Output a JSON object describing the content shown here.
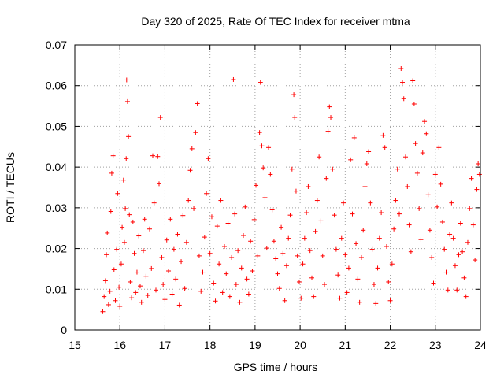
{
  "chart_data": {
    "type": "scatter",
    "title": "Day 320 of 2025, Rate Of TEC Index for receiver mtma",
    "xlabel": "GPS time / hours",
    "ylabel": "ROTI / TECUs",
    "xlim": [
      15,
      24
    ],
    "ylim": [
      0,
      0.07
    ],
    "xticks": [
      15,
      16,
      17,
      18,
      19,
      20,
      21,
      22,
      23,
      24
    ],
    "yticks": [
      0,
      0.01,
      0.02,
      0.03,
      0.04,
      0.05,
      0.06,
      0.07
    ],
    "xtick_labels": [
      "15",
      "16",
      "17",
      "18",
      "19",
      "20",
      "21",
      "22",
      "23",
      "24"
    ],
    "ytick_labels": [
      "0",
      "0.01",
      "0.02",
      "0.03",
      "0.04",
      "0.05",
      "0.06",
      "0.07"
    ],
    "grid": true,
    "marker": "+",
    "color": "#ff0000",
    "series": [
      {
        "name": "ROTI",
        "points": [
          [
            15.62,
            0.0045
          ],
          [
            15.65,
            0.0082
          ],
          [
            15.68,
            0.0121
          ],
          [
            15.7,
            0.0185
          ],
          [
            15.72,
            0.0238
          ],
          [
            15.75,
            0.0062
          ],
          [
            15.78,
            0.0095
          ],
          [
            15.8,
            0.0291
          ],
          [
            15.82,
            0.0385
          ],
          [
            15.85,
            0.0428
          ],
          [
            15.87,
            0.0148
          ],
          [
            15.9,
            0.0072
          ],
          [
            15.93,
            0.0198
          ],
          [
            15.95,
            0.0335
          ],
          [
            15.98,
            0.0105
          ],
          [
            16.0,
            0.0058
          ],
          [
            16.03,
            0.0162
          ],
          [
            16.05,
            0.0252
          ],
          [
            16.08,
            0.0368
          ],
          [
            16.1,
            0.0215
          ],
          [
            16.12,
            0.0298
          ],
          [
            16.14,
            0.0421
          ],
          [
            16.15,
            0.0614
          ],
          [
            16.17,
            0.0561
          ],
          [
            16.19,
            0.0475
          ],
          [
            16.21,
            0.0283
          ],
          [
            16.23,
            0.0118
          ],
          [
            16.26,
            0.0079
          ],
          [
            16.29,
            0.0265
          ],
          [
            16.32,
            0.0188
          ],
          [
            16.35,
            0.0092
          ],
          [
            16.38,
            0.0142
          ],
          [
            16.42,
            0.0231
          ],
          [
            16.45,
            0.0108
          ],
          [
            16.48,
            0.0068
          ],
          [
            16.52,
            0.0195
          ],
          [
            16.55,
            0.0272
          ],
          [
            16.58,
            0.0132
          ],
          [
            16.62,
            0.0085
          ],
          [
            16.66,
            0.0248
          ],
          [
            16.7,
            0.0151
          ],
          [
            16.73,
            0.0428
          ],
          [
            16.76,
            0.0312
          ],
          [
            16.8,
            0.0098
          ],
          [
            16.84,
            0.0426
          ],
          [
            16.87,
            0.0359
          ],
          [
            16.9,
            0.0522
          ],
          [
            16.93,
            0.0178
          ],
          [
            16.96,
            0.0112
          ],
          [
            17.0,
            0.0075
          ],
          [
            17.04,
            0.0221
          ],
          [
            17.08,
            0.0145
          ],
          [
            17.12,
            0.0272
          ],
          [
            17.16,
            0.0088
          ],
          [
            17.2,
            0.0198
          ],
          [
            17.24,
            0.0125
          ],
          [
            17.28,
            0.0235
          ],
          [
            17.32,
            0.0061
          ],
          [
            17.36,
            0.0168
          ],
          [
            17.4,
            0.0281
          ],
          [
            17.44,
            0.0102
          ],
          [
            17.48,
            0.0215
          ],
          [
            17.52,
            0.0318
          ],
          [
            17.56,
            0.0392
          ],
          [
            17.6,
            0.0445
          ],
          [
            17.64,
            0.0298
          ],
          [
            17.68,
            0.0485
          ],
          [
            17.72,
            0.0556
          ],
          [
            17.76,
            0.0182
          ],
          [
            17.8,
            0.0095
          ],
          [
            17.84,
            0.0142
          ],
          [
            17.88,
            0.0228
          ],
          [
            17.92,
            0.0335
          ],
          [
            17.96,
            0.0421
          ],
          [
            18.0,
            0.0188
          ],
          [
            18.04,
            0.0278
          ],
          [
            18.08,
            0.0115
          ],
          [
            18.12,
            0.0071
          ],
          [
            18.16,
            0.0255
          ],
          [
            18.2,
            0.0162
          ],
          [
            18.24,
            0.0318
          ],
          [
            18.28,
            0.0092
          ],
          [
            18.32,
            0.0205
          ],
          [
            18.36,
            0.0138
          ],
          [
            18.4,
            0.0262
          ],
          [
            18.44,
            0.0082
          ],
          [
            18.48,
            0.0178
          ],
          [
            18.52,
            0.0615
          ],
          [
            18.55,
            0.0285
          ],
          [
            18.58,
            0.0112
          ],
          [
            18.62,
            0.0195
          ],
          [
            18.66,
            0.0068
          ],
          [
            18.7,
            0.0152
          ],
          [
            18.74,
            0.0232
          ],
          [
            18.78,
            0.0302
          ],
          [
            18.82,
            0.0125
          ],
          [
            18.86,
            0.0088
          ],
          [
            18.9,
            0.0218
          ],
          [
            18.94,
            0.0145
          ],
          [
            18.98,
            0.0271
          ],
          [
            19.02,
            0.0355
          ],
          [
            19.06,
            0.0182
          ],
          [
            19.1,
            0.0485
          ],
          [
            19.12,
            0.0608
          ],
          [
            19.15,
            0.0452
          ],
          [
            19.18,
            0.0398
          ],
          [
            19.22,
            0.0325
          ],
          [
            19.26,
            0.0201
          ],
          [
            19.3,
            0.0448
          ],
          [
            19.34,
            0.0382
          ],
          [
            19.38,
            0.0295
          ],
          [
            19.42,
            0.0218
          ],
          [
            19.46,
            0.0175
          ],
          [
            19.5,
            0.0138
          ],
          [
            19.54,
            0.0102
          ],
          [
            19.58,
            0.0252
          ],
          [
            19.62,
            0.0188
          ],
          [
            19.66,
            0.0072
          ],
          [
            19.7,
            0.0158
          ],
          [
            19.74,
            0.0225
          ],
          [
            19.78,
            0.0282
          ],
          [
            19.82,
            0.0395
          ],
          [
            19.86,
            0.0578
          ],
          [
            19.88,
            0.0522
          ],
          [
            19.91,
            0.0341
          ],
          [
            19.94,
            0.0182
          ],
          [
            19.98,
            0.0118
          ],
          [
            20.02,
            0.0078
          ],
          [
            20.06,
            0.0162
          ],
          [
            20.1,
            0.0225
          ],
          [
            20.14,
            0.0288
          ],
          [
            20.18,
            0.0352
          ],
          [
            20.22,
            0.0195
          ],
          [
            20.26,
            0.0128
          ],
          [
            20.3,
            0.0082
          ],
          [
            20.34,
            0.0242
          ],
          [
            20.38,
            0.0318
          ],
          [
            20.42,
            0.0425
          ],
          [
            20.46,
            0.0268
          ],
          [
            20.5,
            0.0182
          ],
          [
            20.54,
            0.0112
          ],
          [
            20.58,
            0.0372
          ],
          [
            20.62,
            0.0488
          ],
          [
            20.65,
            0.0548
          ],
          [
            20.68,
            0.0522
          ],
          [
            20.72,
            0.0395
          ],
          [
            20.76,
            0.0282
          ],
          [
            20.8,
            0.0198
          ],
          [
            20.84,
            0.0135
          ],
          [
            20.88,
            0.0078
          ],
          [
            20.92,
            0.0225
          ],
          [
            20.96,
            0.0312
          ],
          [
            21.0,
            0.0185
          ],
          [
            21.04,
            0.0092
          ],
          [
            21.08,
            0.0152
          ],
          [
            21.12,
            0.0418
          ],
          [
            21.16,
            0.0285
          ],
          [
            21.2,
            0.0472
          ],
          [
            21.24,
            0.0212
          ],
          [
            21.28,
            0.0125
          ],
          [
            21.32,
            0.0068
          ],
          [
            21.36,
            0.0178
          ],
          [
            21.4,
            0.0245
          ],
          [
            21.44,
            0.0352
          ],
          [
            21.48,
            0.0408
          ],
          [
            21.52,
            0.0438
          ],
          [
            21.56,
            0.0312
          ],
          [
            21.6,
            0.0198
          ],
          [
            21.64,
            0.0112
          ],
          [
            21.68,
            0.0065
          ],
          [
            21.72,
            0.0152
          ],
          [
            21.76,
            0.0225
          ],
          [
            21.8,
            0.0288
          ],
          [
            21.84,
            0.0478
          ],
          [
            21.88,
            0.0448
          ],
          [
            21.92,
            0.0205
          ],
          [
            21.96,
            0.0118
          ],
          [
            22.0,
            0.0072
          ],
          [
            22.04,
            0.0162
          ],
          [
            22.08,
            0.0248
          ],
          [
            22.12,
            0.0318
          ],
          [
            22.16,
            0.0395
          ],
          [
            22.2,
            0.0285
          ],
          [
            22.24,
            0.0642
          ],
          [
            22.27,
            0.0608
          ],
          [
            22.3,
            0.0568
          ],
          [
            22.34,
            0.0425
          ],
          [
            22.38,
            0.0352
          ],
          [
            22.42,
            0.0258
          ],
          [
            22.46,
            0.0192
          ],
          [
            22.5,
            0.0612
          ],
          [
            22.53,
            0.0555
          ],
          [
            22.56,
            0.0458
          ],
          [
            22.6,
            0.0385
          ],
          [
            22.64,
            0.0298
          ],
          [
            22.68,
            0.0222
          ],
          [
            22.72,
            0.0435
          ],
          [
            22.76,
            0.0512
          ],
          [
            22.8,
            0.0482
          ],
          [
            22.84,
            0.0332
          ],
          [
            22.88,
            0.0245
          ],
          [
            22.92,
            0.0178
          ],
          [
            22.96,
            0.0115
          ],
          [
            23.0,
            0.0382
          ],
          [
            23.04,
            0.0302
          ],
          [
            23.08,
            0.0448
          ],
          [
            23.12,
            0.0358
          ],
          [
            23.16,
            0.0265
          ],
          [
            23.2,
            0.0198
          ],
          [
            23.24,
            0.0142
          ],
          [
            23.28,
            0.0098
          ],
          [
            23.32,
            0.0235
          ],
          [
            23.36,
            0.0312
          ],
          [
            23.4,
            0.0225
          ],
          [
            23.44,
            0.0158
          ],
          [
            23.48,
            0.0098
          ],
          [
            23.52,
            0.0185
          ],
          [
            23.56,
            0.0262
          ],
          [
            23.6,
            0.0192
          ],
          [
            23.64,
            0.0128
          ],
          [
            23.68,
            0.0082
          ],
          [
            23.72,
            0.0215
          ],
          [
            23.76,
            0.0298
          ],
          [
            23.8,
            0.0372
          ],
          [
            23.84,
            0.0258
          ],
          [
            23.88,
            0.0172
          ],
          [
            23.92,
            0.0345
          ],
          [
            23.95,
            0.0408
          ],
          [
            23.98,
            0.0382
          ]
        ]
      }
    ]
  }
}
